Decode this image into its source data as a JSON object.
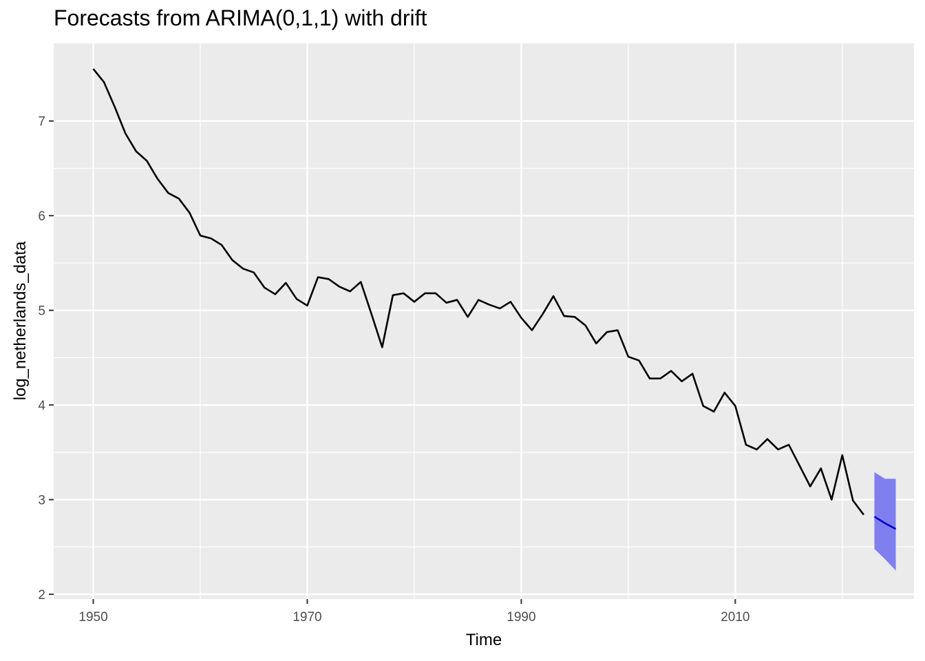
{
  "chart_data": {
    "type": "line",
    "title": "Forecasts from ARIMA(0,1,1) with drift",
    "xlabel": "Time",
    "ylabel": "log_netherlands_data",
    "xlim": [
      1946.3,
      2026.7
    ],
    "ylim": [
      1.95,
      7.82
    ],
    "x_ticks": [
      1950,
      1970,
      1990,
      2010
    ],
    "y_ticks": [
      2,
      3,
      4,
      5,
      6,
      7
    ],
    "grid": true,
    "colors": {
      "panel": "#EBEBEB",
      "grid_major": "#FFFFFF",
      "series": "#000000",
      "forecast_line": "#0000CC",
      "forecast_band": "#7F7FEF",
      "tick_text": "#4D4D4D"
    },
    "series": [
      {
        "x": [
          1950,
          1951,
          1952,
          1953,
          1954,
          1955,
          1956,
          1957,
          1958,
          1959,
          1960,
          1961,
          1962,
          1963,
          1964,
          1965,
          1966,
          1967,
          1968,
          1969,
          1970,
          1971,
          1972,
          1973,
          1974,
          1975,
          1976,
          1977,
          1978,
          1979,
          1980,
          1981,
          1982,
          1983,
          1984,
          1985,
          1986,
          1987,
          1988,
          1989,
          1990,
          1991,
          1992,
          1993,
          1994,
          1995,
          1996,
          1997,
          1998,
          1999,
          2000,
          2001,
          2002,
          2003,
          2004,
          2005,
          2006,
          2007,
          2008,
          2009,
          2010,
          2011,
          2012,
          2013,
          2014,
          2015,
          2016,
          2017,
          2018,
          2019,
          2020,
          2021,
          2022
        ],
        "values": [
          7.55,
          7.41,
          7.15,
          6.87,
          6.68,
          6.58,
          6.39,
          6.24,
          6.18,
          6.03,
          5.79,
          5.76,
          5.69,
          5.53,
          5.44,
          5.4,
          5.24,
          5.17,
          5.29,
          5.12,
          5.05,
          5.35,
          5.33,
          5.25,
          5.2,
          5.3,
          4.96,
          4.61,
          5.16,
          5.18,
          5.09,
          5.18,
          5.18,
          5.08,
          5.11,
          4.93,
          5.11,
          5.06,
          5.02,
          5.09,
          4.92,
          4.79,
          4.96,
          5.15,
          4.94,
          4.93,
          4.84,
          4.65,
          4.77,
          4.79,
          4.51,
          4.47,
          4.28,
          4.28,
          4.36,
          4.25,
          4.33,
          3.99,
          3.93,
          4.13,
          3.99,
          3.58,
          3.53,
          3.64,
          3.53,
          3.58,
          3.36,
          3.14,
          3.33,
          3.0,
          3.47,
          2.99,
          2.84
        ]
      }
    ],
    "forecast": {
      "x": [
        2023,
        2024,
        2025
      ],
      "mean": [
        2.82,
        2.75,
        2.69
      ],
      "lower": [
        2.48,
        2.37,
        2.25
      ],
      "upper": [
        3.29,
        3.22,
        3.22
      ]
    }
  }
}
